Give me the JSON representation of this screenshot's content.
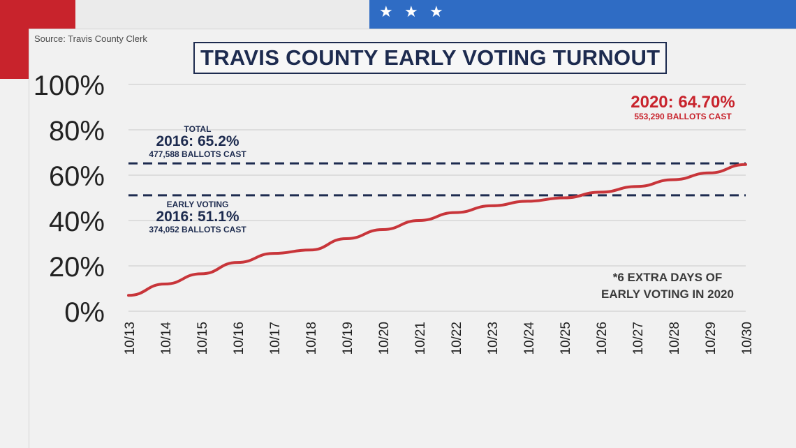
{
  "source": "Source: Travis County Clerk",
  "stars": [
    "★",
    "★",
    "★"
  ],
  "colors": {
    "brand_red": "#c8232c",
    "navy": "#1d2b4f",
    "flag_blue": "#2f6cc4",
    "line": "#c8353a"
  },
  "annotations": {
    "total_label": "TOTAL",
    "total_value": "2016: 65.2%",
    "total_ballots": "477,588 BALLOTS CAST",
    "early_label": "EARLY VOTING",
    "early_value": "2016: 51.1%",
    "early_ballots": "374,052 BALLOTS CAST",
    "current_value": "2020: 64.70%",
    "current_ballots": "553,290 BALLOTS CAST",
    "note_line1": "*6 EXTRA DAYS OF",
    "note_line2": "EARLY VOTING IN 2020"
  },
  "chart_data": {
    "type": "line",
    "title": "TRAVIS COUNTY EARLY VOTING TURNOUT",
    "xlabel": "",
    "ylabel": "",
    "categories": [
      "10/13",
      "10/14",
      "10/15",
      "10/16",
      "10/17",
      "10/18",
      "10/19",
      "10/20",
      "10/21",
      "10/22",
      "10/23",
      "10/24",
      "10/25",
      "10/26",
      "10/27",
      "10/28",
      "10/29",
      "10/30"
    ],
    "series": [
      {
        "values": [
          7,
          12,
          16.5,
          21.5,
          25.5,
          27,
          32,
          36,
          40,
          43.5,
          46.5,
          48.5,
          50,
          52.5,
          55,
          58,
          61,
          64.7
        ]
      }
    ],
    "reference_lines": [
      {
        "value": 65.2
      },
      {
        "value": 51.1
      }
    ],
    "ylim": [
      0,
      100
    ],
    "yticks": [
      0,
      20,
      40,
      60,
      80,
      100
    ],
    "ytick_labels": [
      "0%",
      "20%",
      "40%",
      "60%",
      "80%",
      "100%"
    ],
    "grid": true,
    "legend": "none"
  }
}
